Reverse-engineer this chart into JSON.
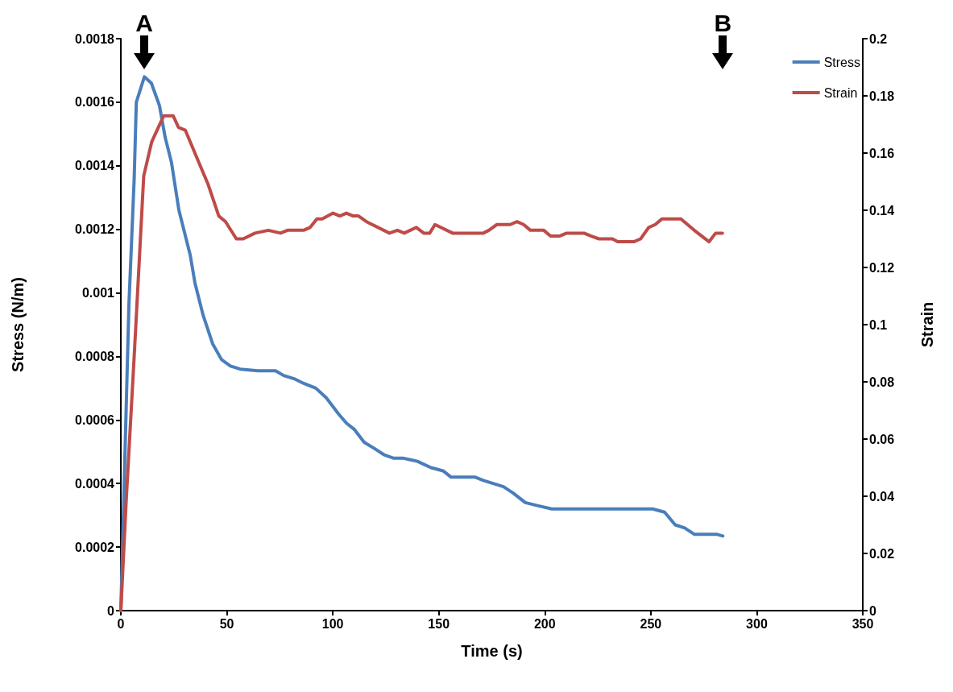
{
  "chart_data": {
    "type": "line",
    "xlabel": "Time (s)",
    "ylabel": "Stress (N/m)",
    "y2label": "Strain",
    "xlim": [
      0,
      350
    ],
    "xticks": [
      0,
      50,
      100,
      150,
      200,
      250,
      300,
      350
    ],
    "ylim": [
      0,
      0.0018
    ],
    "yticks": [
      0,
      0.0002,
      0.0004,
      0.0006,
      0.0008,
      0.001,
      0.0012,
      0.0014,
      0.0016,
      0.0018
    ],
    "y2lim": [
      0,
      0.2
    ],
    "y2ticks": [
      0,
      0.02,
      0.04,
      0.06,
      0.08,
      0.1,
      0.12,
      0.14,
      0.16,
      0.18,
      0.2
    ],
    "grid": false,
    "legend": "top right",
    "marker": "none",
    "line_style": "solid",
    "annotations": [
      "A",
      "B"
    ],
    "series": [
      {
        "name": "Stress",
        "color": "#4a7ebb",
        "x": [
          0,
          3.8,
          6.3,
          7.3,
          11.1,
          14.4,
          18.2,
          20.9,
          23.9,
          27.4,
          32.7,
          35,
          38.8,
          43.3,
          47.5,
          51.7,
          56.3,
          64.6,
          73,
          76.8,
          81.7,
          86.3,
          92,
          96.9,
          102.6,
          106.4,
          110.2,
          114.8,
          119.7,
          124.3,
          128.5,
          133,
          139.9,
          146.3,
          152,
          155.8,
          159.6,
          167.2,
          171,
          175.6,
          180.5,
          185.1,
          190.8,
          196.9,
          203.3,
          209,
          220.5,
          226.1,
          231.9,
          237.5,
          241.4,
          245.2,
          250.9,
          256.5,
          261.5,
          266,
          270.6,
          275.6,
          281.3,
          284
        ],
        "values": [
          0,
          0.00096,
          0.00136,
          0.0016,
          0.00168,
          0.00166,
          0.00159,
          0.00149,
          0.00141,
          0.00126,
          0.00112,
          0.00103,
          0.00093,
          0.00084,
          0.00079,
          0.00077,
          0.00076,
          0.000755,
          0.000755,
          0.00074,
          0.00073,
          0.000715,
          0.0007,
          0.00067,
          0.00062,
          0.00059,
          0.00057,
          0.00053,
          0.00051,
          0.00049,
          0.00048,
          0.00048,
          0.00047,
          0.00045,
          0.00044,
          0.00042,
          0.00042,
          0.00042,
          0.00041,
          0.0004,
          0.00039,
          0.00037,
          0.00034,
          0.00033,
          0.00032,
          0.00032,
          0.00032,
          0.00032,
          0.00032,
          0.00032,
          0.00032,
          0.00032,
          0.00032,
          0.00031,
          0.00027,
          0.00026,
          0.00024,
          0.00024,
          0.00024,
          0.000235
        ]
      },
      {
        "name": "Strain",
        "color": "#be4b48",
        "axis": "y2",
        "x": [
          0,
          2.5,
          6.3,
          7.6,
          10.8,
          14.6,
          20.2,
          24.7,
          27.2,
          30.4,
          35.5,
          41.2,
          46.2,
          49.4,
          54.5,
          57.7,
          63.3,
          69.6,
          75.3,
          78.6,
          86.2,
          89.3,
          92.5,
          95,
          100.1,
          103.3,
          106.4,
          109.6,
          112.1,
          115.9,
          126.7,
          130.5,
          133.7,
          139.4,
          142.9,
          145.7,
          148.2,
          156.5,
          171,
          173.6,
          177.4,
          183.7,
          186.9,
          190,
          193.2,
          199.5,
          202.7,
          207.1,
          210.3,
          218.5,
          221.7,
          225.5,
          231.9,
          234.4,
          242,
          245.2,
          249,
          252.1,
          255.3,
          264.2,
          270.5,
          277.5,
          280.6,
          283.8
        ],
        "values": [
          0,
          0.038,
          0.089,
          0.107,
          0.152,
          0.164,
          0.173,
          0.173,
          0.169,
          0.168,
          0.159,
          0.149,
          0.138,
          0.136,
          0.13,
          0.13,
          0.132,
          0.133,
          0.132,
          0.133,
          0.133,
          0.134,
          0.137,
          0.137,
          0.139,
          0.138,
          0.139,
          0.138,
          0.138,
          0.136,
          0.132,
          0.133,
          0.132,
          0.134,
          0.132,
          0.132,
          0.135,
          0.132,
          0.132,
          0.133,
          0.135,
          0.135,
          0.136,
          0.135,
          0.133,
          0.133,
          0.131,
          0.131,
          0.132,
          0.132,
          0.131,
          0.13,
          0.13,
          0.129,
          0.129,
          0.13,
          0.134,
          0.135,
          0.137,
          0.137,
          0.133,
          0.129,
          0.132,
          0.132
        ]
      }
    ]
  }
}
